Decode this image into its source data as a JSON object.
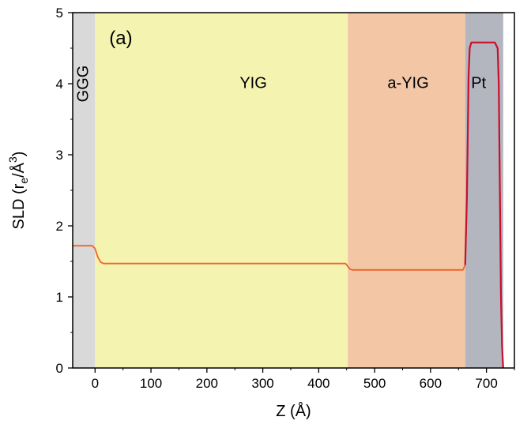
{
  "chart_data": {
    "type": "line",
    "panel_label": "(a)",
    "xlabel": "Z (Å)",
    "ylabel_parts": {
      "pre": "SLD (r",
      "sub": "e",
      "mid": "/Å",
      "sup": "3",
      "post": ")"
    },
    "xlim": [
      -40,
      750
    ],
    "ylim": [
      0,
      5
    ],
    "x_ticks": [
      0,
      100,
      200,
      300,
      400,
      500,
      600,
      700
    ],
    "y_ticks": [
      0,
      1,
      2,
      3,
      4,
      5
    ],
    "grid": false,
    "regions": [
      {
        "name": "GGG",
        "from": -40,
        "to": 0,
        "color": "#d9d9d9",
        "label_rotated": true,
        "label_x": -20,
        "label_y": 4.0
      },
      {
        "name": "YIG",
        "from": 0,
        "to": 452,
        "color": "#f5f3b0",
        "label_x": 283,
        "label_y": 4.0
      },
      {
        "name": "a-YIG",
        "from": 452,
        "to": 662,
        "color": "#f3c6a5",
        "label_x": 560,
        "label_y": 4.0
      },
      {
        "name": "Pt",
        "from": 662,
        "to": 730,
        "color": "#b4b6bf",
        "label_x": 686,
        "label_y": 4.0
      }
    ],
    "series": [
      {
        "color": "#f0642a",
        "x": [
          -40,
          -5,
          0,
          5,
          10,
          15,
          20,
          440,
          448,
          452,
          456,
          460,
          658,
          662,
          665,
          668,
          670,
          673,
          680,
          715,
          720,
          722,
          724,
          726,
          728,
          730
        ],
        "y": [
          1.72,
          1.72,
          1.68,
          1.56,
          1.49,
          1.47,
          1.47,
          1.47,
          1.47,
          1.43,
          1.39,
          1.38,
          1.38,
          1.45,
          2.4,
          4.1,
          4.5,
          4.58,
          4.58,
          4.58,
          4.5,
          4.0,
          2.5,
          1.0,
          0.3,
          0.0
        ]
      },
      {
        "color": "#c8102e",
        "x": [
          662,
          665,
          668,
          670,
          673,
          680,
          715,
          720,
          722,
          724,
          726,
          728,
          730
        ],
        "y": [
          1.45,
          2.4,
          4.1,
          4.5,
          4.58,
          4.58,
          4.58,
          4.5,
          4.0,
          2.5,
          1.0,
          0.3,
          0.0
        ]
      }
    ]
  }
}
